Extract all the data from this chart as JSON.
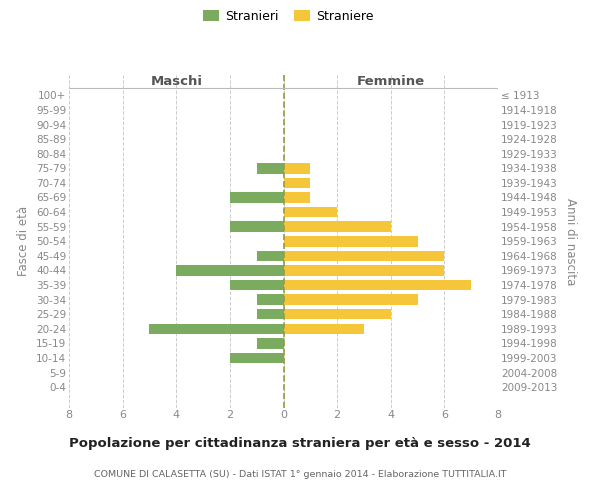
{
  "age_groups": [
    "100+",
    "95-99",
    "90-94",
    "85-89",
    "80-84",
    "75-79",
    "70-74",
    "65-69",
    "60-64",
    "55-59",
    "50-54",
    "45-49",
    "40-44",
    "35-39",
    "30-34",
    "25-29",
    "20-24",
    "15-19",
    "10-14",
    "5-9",
    "0-4"
  ],
  "birth_years": [
    "≤ 1913",
    "1914-1918",
    "1919-1923",
    "1924-1928",
    "1929-1933",
    "1934-1938",
    "1939-1943",
    "1944-1948",
    "1949-1953",
    "1954-1958",
    "1959-1963",
    "1964-1968",
    "1969-1973",
    "1974-1978",
    "1979-1983",
    "1984-1988",
    "1989-1993",
    "1994-1998",
    "1999-2003",
    "2004-2008",
    "2009-2013"
  ],
  "males": [
    0,
    0,
    0,
    0,
    0,
    1,
    0,
    2,
    0,
    2,
    0,
    1,
    4,
    2,
    1,
    1,
    5,
    1,
    2,
    0,
    0
  ],
  "females": [
    0,
    0,
    0,
    0,
    0,
    1,
    1,
    1,
    2,
    4,
    5,
    6,
    6,
    7,
    5,
    4,
    3,
    0,
    0,
    0,
    0
  ],
  "male_color": "#7aab5e",
  "female_color": "#f5c53a",
  "grid_color": "#cccccc",
  "center_line_color": "#9a9a40",
  "text_color": "#888888",
  "title": "Popolazione per cittadinanza straniera per età e sesso - 2014",
  "subtitle": "COMUNE DI CALASETTA (SU) - Dati ISTAT 1° gennaio 2014 - Elaborazione TUTTITALIA.IT",
  "left_header": "Maschi",
  "right_header": "Femmine",
  "y_label_left": "Fasce di età",
  "y_label_right": "Anni di nascita",
  "legend_male": "Stranieri",
  "legend_female": "Straniere",
  "xlim": 8,
  "bar_height": 0.72
}
